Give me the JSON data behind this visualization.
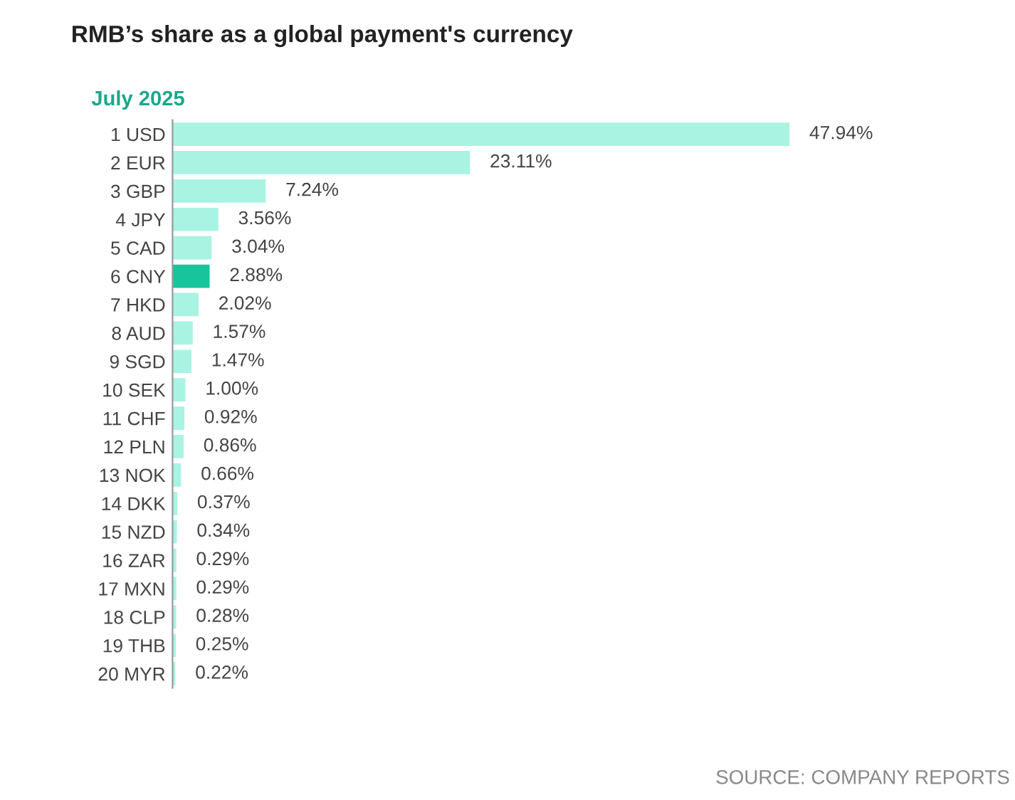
{
  "chart_data": {
    "type": "bar",
    "orientation": "horizontal",
    "title": "RMB’s share as a global payment's currency",
    "subtitle": "July 2025",
    "categories": [
      "1 USD",
      "2 EUR",
      "3 GBP",
      "4 JPY",
      "5 CAD",
      "6 CNY",
      "7 HKD",
      "8 AUD",
      "9 SGD",
      "10 SEK",
      "11 CHF",
      "12 PLN",
      "13 NOK",
      "14 DKK",
      "15 NZD",
      "16 ZAR",
      "17 MXN",
      "18 CLP",
      "19 THB",
      "20 MYR"
    ],
    "values": [
      47.94,
      23.11,
      7.24,
      3.56,
      3.04,
      2.88,
      2.02,
      1.57,
      1.47,
      1.0,
      0.92,
      0.86,
      0.66,
      0.37,
      0.34,
      0.29,
      0.29,
      0.28,
      0.25,
      0.22
    ],
    "value_labels": [
      "47.94%",
      "23.11%",
      "7.24%",
      "3.56%",
      "3.04%",
      "2.88%",
      "2.02%",
      "1.57%",
      "1.47%",
      "1.00%",
      "0.92%",
      "0.86%",
      "0.66%",
      "0.37%",
      "0.34%",
      "0.29%",
      "0.29%",
      "0.28%",
      "0.25%",
      "0.22%"
    ],
    "colors": [
      "#a9f3e3",
      "#a9f3e3",
      "#a9f3e3",
      "#a9f3e3",
      "#a9f3e3",
      "#18c49c",
      "#a9f3e3",
      "#a9f3e3",
      "#a9f3e3",
      "#a9f3e3",
      "#a9f3e3",
      "#a9f3e3",
      "#a9f3e3",
      "#a9f3e3",
      "#a9f3e3",
      "#a9f3e3",
      "#a9f3e3",
      "#a9f3e3",
      "#a9f3e3",
      "#a9f3e3"
    ],
    "annotations": [
      "SOURCE: COMPANY REPORTS"
    ]
  }
}
